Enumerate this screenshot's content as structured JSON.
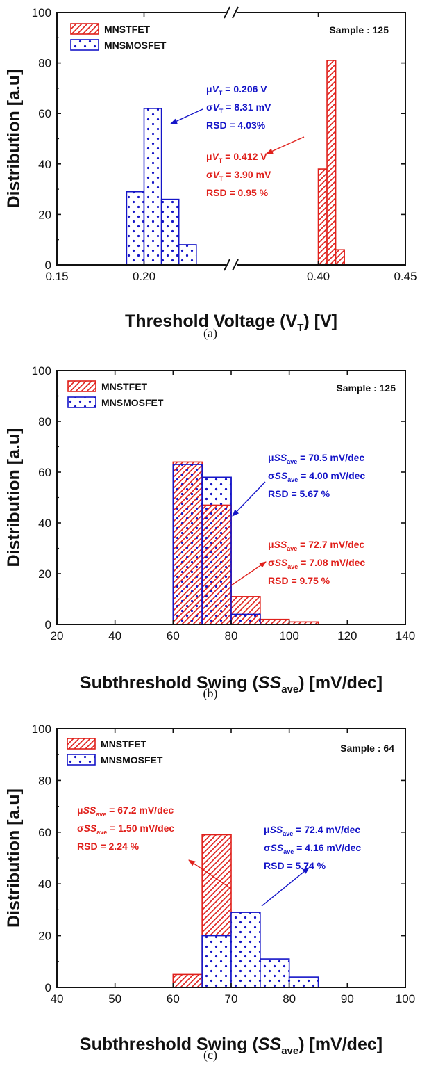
{
  "colors": {
    "tfet": "#e0201b",
    "mos": "#1515c8",
    "axis": "#111111"
  },
  "chart_data": [
    {
      "type": "bar",
      "panel_label": "(a)",
      "xlabel": "Threshold Voltage (V",
      "xlabel_sub": "T",
      "xlabel_tail": ") [V]",
      "ylabel": "Distribution [a.u]",
      "ylim": [
        0,
        100
      ],
      "yticks": [
        "0",
        "20",
        "40",
        "60",
        "80",
        "100"
      ],
      "xlim_left": [
        0.15,
        0.25
      ],
      "xlim_right": [
        0.35,
        0.45
      ],
      "axis_break": true,
      "xticks": [
        "0.15",
        "0.20",
        "0.40",
        "0.45"
      ],
      "sample": "Sample : 125",
      "legend": [
        "MNSTFET",
        "MNSMOSFET"
      ],
      "series": [
        {
          "name": "MNSTFET",
          "color": "tfet",
          "hatch": "diag",
          "bins": [
            [
              0.4,
              0.405,
              38
            ],
            [
              0.405,
              0.41,
              81
            ],
            [
              0.41,
              0.415,
              6
            ]
          ]
        },
        {
          "name": "MNSMOSFET",
          "color": "mos",
          "hatch": "dots",
          "bins": [
            [
              0.19,
              0.2,
              29
            ],
            [
              0.2,
              0.21,
              62
            ],
            [
              0.21,
              0.22,
              26
            ],
            [
              0.22,
              0.23,
              8
            ]
          ]
        }
      ],
      "annotations": [
        {
          "color": "mos",
          "lines": [
            {
              "pre": "μ",
              "it": "V",
              "sub": "T",
              "post": " = 0.206 V"
            },
            {
              "pre": "σ",
              "it": "V",
              "sub": "T",
              "post": " = 8.31 mV"
            },
            {
              "pre": "RSD = 4.03%",
              "it": "",
              "sub": "",
              "post": ""
            }
          ]
        },
        {
          "color": "tfet",
          "lines": [
            {
              "pre": "μ",
              "it": "V",
              "sub": "T",
              "post": " = 0.412 V"
            },
            {
              "pre": "σ",
              "it": "V",
              "sub": "T",
              "post": " = 3.90 mV"
            },
            {
              "pre": "RSD = 0.95 %",
              "it": "",
              "sub": "",
              "post": ""
            }
          ]
        }
      ]
    },
    {
      "type": "bar",
      "panel_label": "(b)",
      "xlabel": "Subthreshold Swing (",
      "xlabel_it": "SS",
      "xlabel_sub": "ave",
      "xlabel_tail": ") [mV/dec]",
      "ylabel": "Distribution [a.u]",
      "ylim": [
        0,
        100
      ],
      "yticks": [
        "0",
        "20",
        "40",
        "60",
        "80",
        "100"
      ],
      "xlim": [
        20,
        140
      ],
      "xticks": [
        "20",
        "40",
        "60",
        "80",
        "100",
        "120",
        "140"
      ],
      "sample": "Sample : 125",
      "legend": [
        "MNSTFET",
        "MNSMOSFET"
      ],
      "series": [
        {
          "name": "MNSTFET",
          "color": "tfet",
          "hatch": "diag",
          "bins": [
            [
              60,
              70,
              64
            ],
            [
              70,
              80,
              47
            ],
            [
              80,
              90,
              11
            ],
            [
              90,
              100,
              2
            ],
            [
              100,
              110,
              1
            ]
          ]
        },
        {
          "name": "MNSMOSFET",
          "color": "mos",
          "hatch": "dots",
          "bins": [
            [
              60,
              70,
              63
            ],
            [
              70,
              80,
              58
            ],
            [
              80,
              90,
              4
            ]
          ]
        }
      ],
      "annotations": [
        {
          "color": "mos",
          "lines": [
            {
              "pre": "μ",
              "it": "SS",
              "sub": "ave",
              "post": " = 70.5 mV/dec"
            },
            {
              "pre": "σ",
              "it": "SS",
              "sub": "ave",
              "post": " = 4.00 mV/dec"
            },
            {
              "pre": "RSD = 5.67 %",
              "it": "",
              "sub": "",
              "post": ""
            }
          ]
        },
        {
          "color": "tfet",
          "lines": [
            {
              "pre": "μ",
              "it": "SS",
              "sub": "ave",
              "post": " = 72.7 mV/dec"
            },
            {
              "pre": "σ",
              "it": "SS",
              "sub": "ave",
              "post": " = 7.08 mV/dec"
            },
            {
              "pre": "RSD = 9.75 %",
              "it": "",
              "sub": "",
              "post": ""
            }
          ]
        }
      ]
    },
    {
      "type": "bar",
      "panel_label": "(c)",
      "xlabel": "Subthreshold Swing (",
      "xlabel_it": "SS",
      "xlabel_sub": "ave",
      "xlabel_tail": ") [mV/dec]",
      "ylabel": "Distribution [a.u]",
      "ylim": [
        0,
        100
      ],
      "yticks": [
        "0",
        "20",
        "40",
        "60",
        "80",
        "100"
      ],
      "xlim": [
        40,
        100
      ],
      "xticks": [
        "40",
        "50",
        "60",
        "70",
        "80",
        "90",
        "100"
      ],
      "sample": "Sample : 64",
      "legend": [
        "MNSTFET",
        "MNSMOSFET"
      ],
      "series": [
        {
          "name": "MNSTFET",
          "color": "tfet",
          "hatch": "diag",
          "bins": [
            [
              60,
              65,
              5
            ],
            [
              65,
              70,
              59
            ]
          ]
        },
        {
          "name": "MNSMOSFET",
          "color": "mos",
          "hatch": "dots",
          "bins": [
            [
              65,
              70,
              20
            ],
            [
              70,
              75,
              29
            ],
            [
              75,
              80,
              11
            ],
            [
              80,
              85,
              4
            ]
          ]
        }
      ],
      "annotations": [
        {
          "color": "tfet",
          "lines": [
            {
              "pre": "μ",
              "it": "SS",
              "sub": "ave",
              "post": " = 67.2 mV/dec"
            },
            {
              "pre": "σ",
              "it": "SS",
              "sub": "ave",
              "post": " = 1.50 mV/dec"
            },
            {
              "pre": "RSD = 2.24 %",
              "it": "",
              "sub": "",
              "post": ""
            }
          ]
        },
        {
          "color": "mos",
          "lines": [
            {
              "pre": "μ",
              "it": "SS",
              "sub": "ave",
              "post": " = 72.4 mV/dec"
            },
            {
              "pre": "σ",
              "it": "SS",
              "sub": "ave",
              "post": " = 4.16 mV/dec"
            },
            {
              "pre": "RSD = 5.74 %",
              "it": "",
              "sub": "",
              "post": ""
            }
          ]
        }
      ]
    }
  ]
}
